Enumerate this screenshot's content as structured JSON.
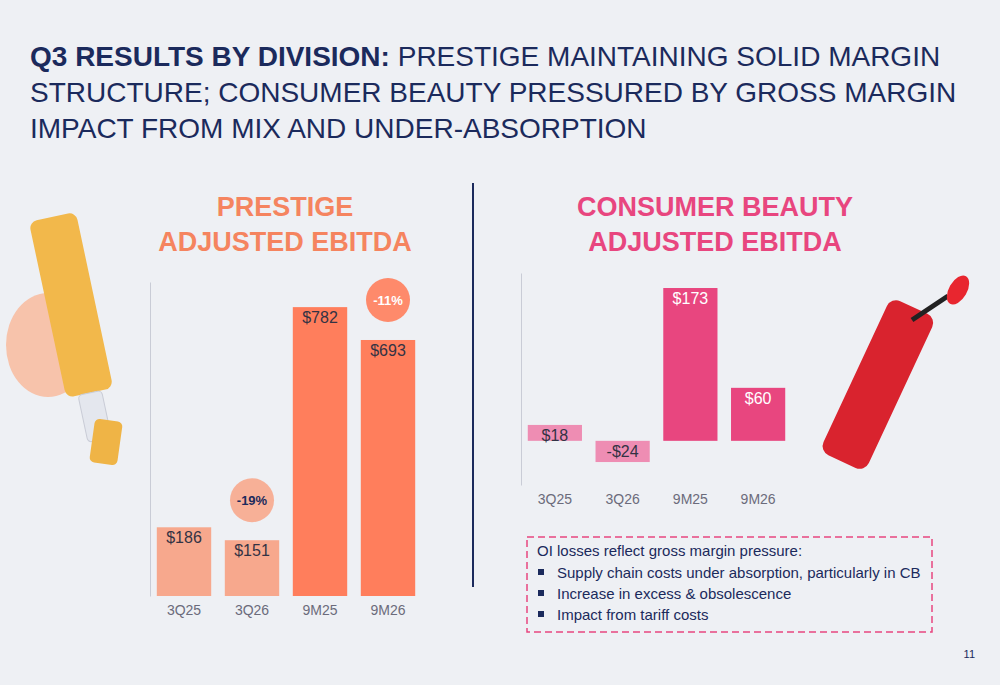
{
  "title": {
    "lead": "Q3 RESULTS BY DIVISION:",
    "text": "PRESTIGE MAINTAINING SOLID MARGIN STRUCTURE; CONSUMER BEAUTY PRESSURED BY GROSS MARGIN IMPACT FROM MIX AND UNDER-ABSORPTION"
  },
  "chart_data": [
    {
      "type": "bar",
      "title": "PRESTIGE ADJUSTED EBITDA",
      "categories": [
        "3Q25",
        "3Q26",
        "9M25",
        "9M26"
      ],
      "values": [
        186,
        151,
        782,
        693
      ],
      "value_labels": [
        "$186",
        "$151",
        "$782",
        "$693"
      ],
      "colors": [
        "#f7a88d",
        "#f7a88d",
        "#ff7e5c",
        "#ff7e5c"
      ],
      "ylim": [
        0,
        850
      ],
      "data_labels": true,
      "tick_labels": "x",
      "annotations": [
        {
          "text": "-19%",
          "category": "3Q26"
        },
        {
          "text": "-11%",
          "category": "9M26"
        }
      ]
    },
    {
      "type": "bar",
      "title": "CONSUMER BEAUTY ADJUSTED EBITDA",
      "categories": [
        "3Q25",
        "3Q26",
        "9M25",
        "9M26"
      ],
      "values": [
        18,
        -24,
        173,
        60
      ],
      "value_labels": [
        "$18",
        "-$24",
        "$173",
        "$60"
      ],
      "colors": [
        "#ee8db3",
        "#ee8db3",
        "#e8467f",
        "#e8467f"
      ],
      "ylim": [
        -50,
        190
      ],
      "data_labels": true,
      "tick_labels": "x"
    }
  ],
  "notes": {
    "heading": "OI losses reflect gross margin pressure:",
    "items": [
      "Supply chain costs under absorption, particularly in CB",
      "Increase in excess & obsolescence",
      "Impact from tariff costs"
    ]
  },
  "page_number": "11"
}
